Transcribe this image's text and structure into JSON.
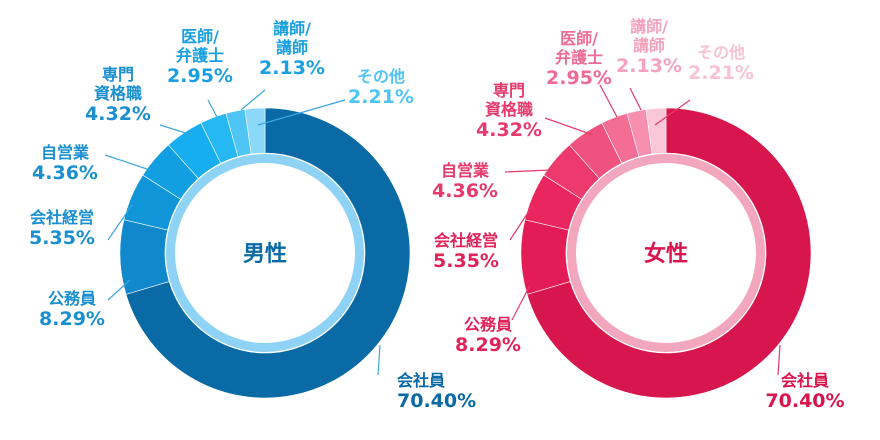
{
  "chart_data": [
    {
      "type": "pie",
      "center_label": "男性",
      "colors": [
        "#0a6aa5",
        "#1188cc",
        "#1095d8",
        "#119fe2",
        "#16aeee",
        "#26b8f2",
        "#4ec5f5",
        "#8cd8f9"
      ],
      "inner_ring_color": "#8ed3f5",
      "line_color": "#3aa6dd",
      "slices": [
        {
          "name": "会社員",
          "label_lines": [
            "会社員"
          ],
          "pct_text": "70.40%",
          "value": 70.4,
          "label_color": "#0a6aa5"
        },
        {
          "name": "公務員",
          "label_lines": [
            "公務員"
          ],
          "pct_text": "8.29%",
          "value": 8.29,
          "label_color": "#1a8fd0"
        },
        {
          "name": "会社経営",
          "label_lines": [
            "会社経営"
          ],
          "pct_text": "5.35%",
          "value": 5.35,
          "label_color": "#1a8fd0"
        },
        {
          "name": "自営業",
          "label_lines": [
            "自営業"
          ],
          "pct_text": "4.36%",
          "value": 4.36,
          "label_color": "#1a8fd0"
        },
        {
          "name": "専門資格職",
          "label_lines": [
            "専門",
            "資格職"
          ],
          "pct_text": "4.32%",
          "value": 4.32,
          "label_color": "#1a8fd0"
        },
        {
          "name": "医師/弁護士",
          "label_lines": [
            "医師/",
            "弁護士"
          ],
          "pct_text": "2.95%",
          "value": 2.95,
          "label_color": "#1aa0e0"
        },
        {
          "name": "講師/講師",
          "label_lines": [
            "講師/",
            "講師"
          ],
          "pct_text": "2.13%",
          "value": 2.13,
          "label_color": "#1aa0e0"
        },
        {
          "name": "その他",
          "label_lines": [
            "その他"
          ],
          "pct_text": "2.21%",
          "value": 2.21,
          "label_color": "#4ec5f5"
        }
      ]
    },
    {
      "type": "pie",
      "center_label": "女性",
      "colors": [
        "#d8164e",
        "#e31b56",
        "#ea265f",
        "#ed3a6d",
        "#f0527f",
        "#f46d95",
        "#f78fb0",
        "#fbc7d8"
      ],
      "inner_ring_color": "#f3a7bf",
      "line_color": "#e8396b",
      "slices": [
        {
          "name": "会社員",
          "label_lines": [
            "会社員"
          ],
          "pct_text": "70.40%",
          "value": 70.4,
          "label_color": "#d8164e"
        },
        {
          "name": "公務員",
          "label_lines": [
            "公務員"
          ],
          "pct_text": "8.29%",
          "value": 8.29,
          "label_color": "#e0245a"
        },
        {
          "name": "会社経営",
          "label_lines": [
            "会社経営"
          ],
          "pct_text": "5.35%",
          "value": 5.35,
          "label_color": "#e0245a"
        },
        {
          "name": "自営業",
          "label_lines": [
            "自営業"
          ],
          "pct_text": "4.36%",
          "value": 4.36,
          "label_color": "#e63a6c"
        },
        {
          "name": "専門資格職",
          "label_lines": [
            "専門",
            "資格職"
          ],
          "pct_text": "4.32%",
          "value": 4.32,
          "label_color": "#e63a6c"
        },
        {
          "name": "医師/弁護士",
          "label_lines": [
            "医師/",
            "弁護士"
          ],
          "pct_text": "2.95%",
          "value": 2.95,
          "label_color": "#ee6b94"
        },
        {
          "name": "講師/講師",
          "label_lines": [
            "講師/",
            "講師"
          ],
          "pct_text": "2.13%",
          "value": 2.13,
          "label_color": "#f4a3bd"
        },
        {
          "name": "その他",
          "label_lines": [
            "その他"
          ],
          "pct_text": "2.21%",
          "value": 2.21,
          "label_color": "#f8c2d4"
        }
      ]
    }
  ]
}
